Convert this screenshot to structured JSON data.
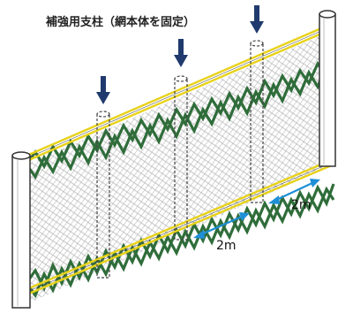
{
  "caption": "補強用支柱（網本体を固定）",
  "dimensions": [
    "2m",
    "2m"
  ],
  "colors": {
    "mesh_green": "#2f6d3a",
    "rail_yellow": "#e8d21a",
    "arrow_navy": "#203a6e",
    "dimension_blue": "#1e8fd6",
    "post_outline": "#333333"
  },
  "icons": [
    "down-arrow-icon",
    "down-arrow-icon",
    "down-arrow-icon"
  ]
}
